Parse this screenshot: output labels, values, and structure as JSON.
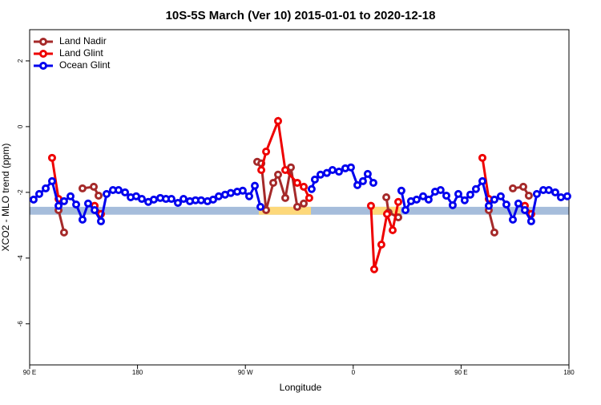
{
  "chart_data": {
    "type": "line",
    "title": "10S-5S March (Ver 10)   2015-01-01 to 2020-12-18",
    "x_label": "Longitude",
    "y_label": "XCO2 - MLO trend (ppm)",
    "xlim": [
      90,
      540
    ],
    "ylim": [
      -7.25,
      2.95
    ],
    "xticks": [
      {
        "value": 90,
        "label": "90 E"
      },
      180,
      {
        "value": 270,
        "label": "90 W"
      },
      {
        "value": 360,
        "label": "0"
      },
      {
        "value": 450,
        "label": "90 E"
      },
      {
        "value": 540,
        "label": "180"
      }
    ],
    "yticks": [
      -6,
      -4,
      -2,
      0,
      2
    ],
    "legend": "top-left",
    "band": {
      "y": [
        -2.68,
        -2.44
      ],
      "color": "#a6bddb",
      "land_color": "#fdd87a",
      "land_spans": [
        [
          281.2,
          324.7
        ],
        [
          376.1,
          399.6
        ]
      ]
    },
    "series": [
      {
        "name": "Land Nadir",
        "color": "#a52a2a",
        "x": [
          114.1,
          118.7,
          null,
          134.1,
          143.5,
          147.5,
          null,
          279.9,
          283.3,
          287.3,
          293.3,
          297.3,
          303.3,
          308.0,
          313.3,
          318.7,
          null,
          387.6,
          389.5,
          397.6,
          null,
          473.1,
          477.8,
          null,
          493.2,
          501.9,
          506.5
        ],
        "values": [
          -2.54,
          -3.22,
          null,
          -1.88,
          -1.83,
          -2.1,
          null,
          -1.07,
          -1.12,
          -2.54,
          -1.71,
          -1.46,
          -2.17,
          -1.24,
          -2.44,
          -2.34,
          null,
          -2.15,
          -2.61,
          -2.76,
          null,
          -2.54,
          -3.22,
          null,
          -1.88,
          -1.83,
          -2.1
        ]
      },
      {
        "name": "Land Glint",
        "color": "#ee0000",
        "x": [
          108.7,
          114.1,
          null,
          144.2,
          149.5,
          null,
          283.3,
          287.3,
          297.3,
          303.3,
          313.3,
          318.7,
          323.3,
          null,
          374.8,
          377.5,
          383.5,
          388.2,
          392.9,
          397.6,
          null,
          467.8,
          473.1,
          null,
          503.2,
          508.5
        ],
        "values": [
          -0.95,
          -2.2,
          null,
          -2.41,
          -2.66,
          null,
          -1.32,
          -0.76,
          0.17,
          -1.32,
          -1.71,
          -1.83,
          -2.17,
          null,
          -2.41,
          -4.34,
          -3.59,
          -2.66,
          -3.15,
          -2.29,
          null,
          -0.95,
          -2.2,
          null,
          -2.41,
          -2.66
        ]
      },
      {
        "name": "Ocean Glint",
        "color": "#0000ee",
        "x": [
          93.3,
          98.0,
          103.4,
          108.7,
          114.1,
          118.7,
          124.1,
          128.8,
          134.1,
          138.8,
          144.2,
          149.5,
          154.2,
          159.5,
          164.2,
          169.6,
          174.3,
          178.9,
          183.6,
          189.0,
          193.6,
          199.0,
          203.7,
          208.3,
          213.7,
          218.4,
          223.7,
          228.4,
          233.1,
          238.4,
          243.1,
          247.8,
          253.1,
          257.8,
          263.2,
          267.8,
          273.2,
          277.9,
          282.6,
          null,
          325.3,
          328.0,
          332.7,
          338.0,
          342.7,
          348.1,
          353.4,
          358.1,
          363.5,
          368.1,
          372.1,
          376.8,
          null,
          400.2,
          403.6,
          408.2,
          412.9,
          418.3,
          422.9,
          428.3,
          432.9,
          437.7,
          443.0,
          447.7,
          453.0,
          457.7,
          462.4,
          467.8,
          473.1,
          477.8,
          483.1,
          487.8,
          493.2,
          497.8,
          503.2,
          508.5,
          513.2,
          518.6,
          523.2,
          528.6,
          533.3,
          538.6
        ],
        "values": [
          -2.22,
          -2.05,
          -1.88,
          -1.66,
          -2.41,
          -2.27,
          -2.12,
          -2.37,
          -2.83,
          -2.34,
          -2.54,
          -2.88,
          -2.05,
          -1.93,
          -1.93,
          -2.0,
          -2.15,
          -2.12,
          -2.2,
          -2.29,
          -2.22,
          -2.17,
          -2.2,
          -2.2,
          -2.32,
          -2.2,
          -2.27,
          -2.24,
          -2.24,
          -2.27,
          -2.22,
          -2.12,
          -2.07,
          -2.02,
          -1.98,
          -1.95,
          -2.12,
          -1.8,
          -2.44,
          null,
          -1.9,
          -1.61,
          -1.46,
          -1.41,
          -1.32,
          -1.37,
          -1.27,
          -1.24,
          -1.78,
          -1.66,
          -1.44,
          -1.71,
          null,
          -1.95,
          -2.54,
          -2.27,
          -2.22,
          -2.12,
          -2.22,
          -1.98,
          -1.93,
          -2.1,
          -2.39,
          -2.05,
          -2.24,
          -2.07,
          -1.9,
          -1.66,
          -2.41,
          -2.22,
          -2.12,
          -2.37,
          -2.83,
          -2.34,
          -2.54,
          -2.88,
          -2.05,
          -1.93,
          -1.93,
          -2.0,
          -2.15,
          -2.12
        ]
      }
    ]
  }
}
